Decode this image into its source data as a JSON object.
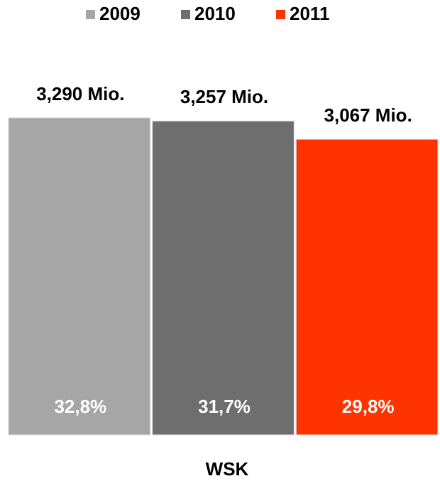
{
  "chart_data": {
    "type": "bar",
    "categories": [
      "WSK"
    ],
    "series": [
      {
        "name": "2009",
        "color": "#a6a6a6",
        "values": [
          3290
        ],
        "value_labels": [
          "3,290 Mio."
        ],
        "share_values": [
          32.8
        ],
        "share_labels": [
          "32,8%"
        ]
      },
      {
        "name": "2010",
        "color": "#6e6e6e",
        "values": [
          3257
        ],
        "value_labels": [
          "3,257 Mio."
        ],
        "share_values": [
          31.7
        ],
        "share_labels": [
          "31,7%"
        ]
      },
      {
        "name": "2011",
        "color": "#ff3300",
        "values": [
          3067
        ],
        "value_labels": [
          "3,067 Mio."
        ],
        "share_values": [
          29.8
        ],
        "share_labels": [
          "29,8%"
        ]
      }
    ],
    "ylim": [
      0,
      3776
    ],
    "legend": "top"
  }
}
